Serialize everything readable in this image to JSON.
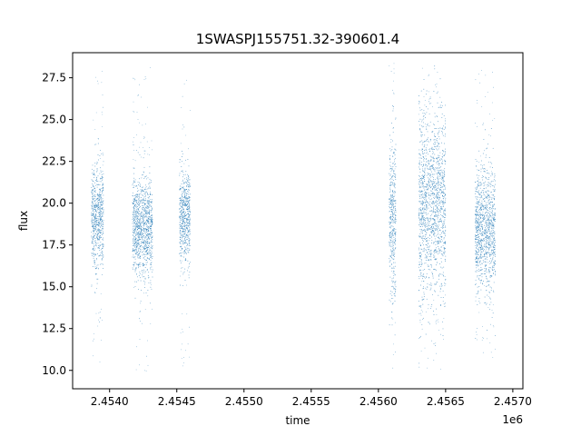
{
  "chart_data": {
    "type": "scatter",
    "title": "1SWASPJ155751.32-390601.4",
    "xlabel": "time",
    "ylabel": "flux",
    "x_offset_label": "1e6",
    "xlim": [
      2453725,
      2457075
    ],
    "ylim": [
      8.9,
      29.0
    ],
    "x_ticks": [
      2.454,
      2.4545,
      2.455,
      2.4555,
      2.456,
      2.4565,
      2.457
    ],
    "x_tick_labels": [
      "2.4540",
      "2.4545",
      "2.4550",
      "2.4555",
      "2.4560",
      "2.4565",
      "2.4570"
    ],
    "y_ticks": [
      10.0,
      12.5,
      15.0,
      17.5,
      20.0,
      22.5,
      25.0,
      27.5
    ],
    "y_tick_labels": [
      "10.0",
      "12.5",
      "15.0",
      "17.5",
      "20.0",
      "22.5",
      "25.0",
      "27.5"
    ],
    "grid": false,
    "series_color": "#1f77b4",
    "series": [
      {
        "segments": [
          {
            "t_start": 2453865,
            "t_end": 2453955,
            "flux_center": 19.3,
            "flux_core_low": 16.5,
            "flux_core_high": 22.6,
            "flux_min": 10.2,
            "flux_max": 28.2
          },
          {
            "t_start": 2454170,
            "t_end": 2454320,
            "flux_center": 18.6,
            "flux_core_low": 15.8,
            "flux_core_high": 21.5,
            "flux_min": 9.8,
            "flux_max": 28.2
          },
          {
            "t_start": 2454520,
            "t_end": 2454600,
            "flux_center": 19.2,
            "flux_core_low": 16.8,
            "flux_core_high": 22.5,
            "flux_min": 10.1,
            "flux_max": 27.5
          },
          {
            "t_start": 2456080,
            "t_end": 2456130,
            "flux_center": 19.0,
            "flux_core_low": 14.5,
            "flux_core_high": 24.0,
            "flux_min": 9.8,
            "flux_max": 28.4
          },
          {
            "t_start": 2456300,
            "t_end": 2456500,
            "flux_center": 20.0,
            "flux_core_low": 14.8,
            "flux_core_high": 26.0,
            "flux_min": 10.0,
            "flux_max": 28.2
          },
          {
            "t_start": 2456720,
            "t_end": 2456870,
            "flux_center": 18.5,
            "flux_core_low": 15.2,
            "flux_core_high": 22.5,
            "flux_min": 10.0,
            "flux_max": 28.2
          }
        ]
      }
    ]
  }
}
